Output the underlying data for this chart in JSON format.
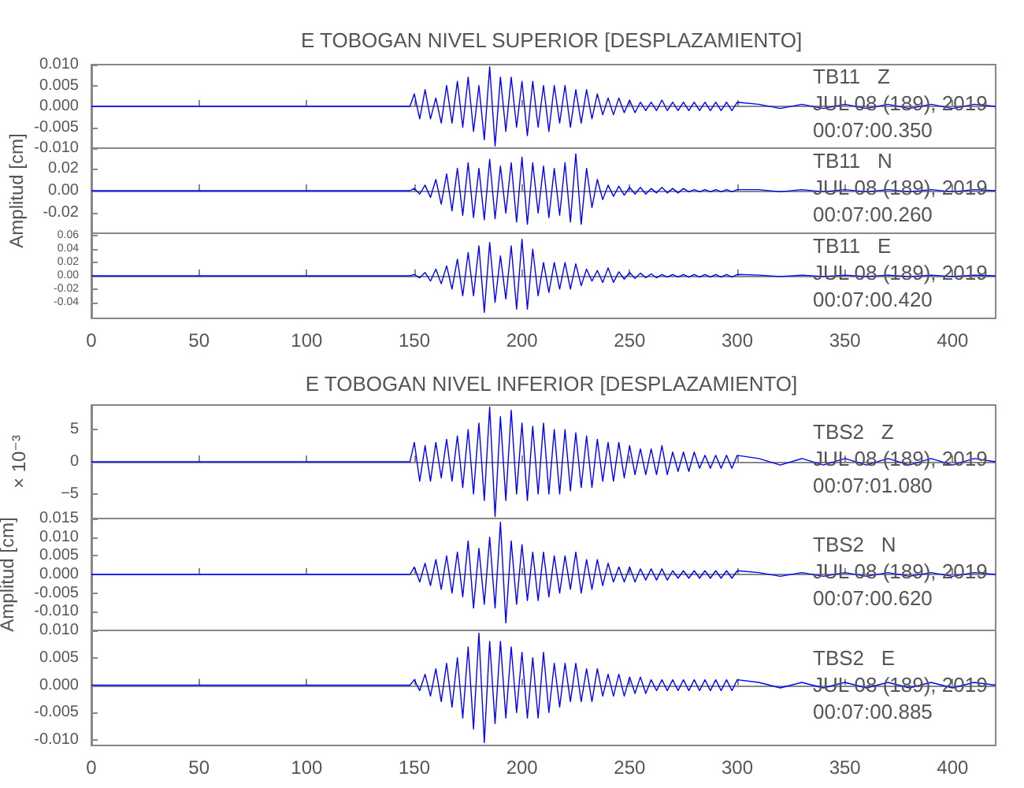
{
  "chart_data": [
    {
      "type": "line",
      "title": "E TOBOGAN NIVEL SUPERIOR [DESPLAZAMIENTO]",
      "marker": "none",
      "tick_labels": "y",
      "x": [
        0,
        50,
        100,
        148,
        150,
        152.5,
        155,
        157.5,
        160,
        162.5,
        165,
        167.5,
        170,
        172.5,
        175,
        177.5,
        180,
        182.5,
        185,
        187.5,
        190,
        192.5,
        195,
        197.5,
        200,
        202.5,
        205,
        207.5,
        210,
        212.5,
        215,
        217.5,
        220,
        222.5,
        225,
        227.5,
        230,
        232.5,
        235,
        237.5,
        240,
        242.5,
        245,
        247.5,
        250,
        252.5,
        255,
        257.5,
        260,
        262.5,
        265,
        267.5,
        270,
        272.5,
        275,
        277.5,
        280,
        282.5,
        285,
        287.5,
        290,
        292.5,
        295,
        297.5,
        300,
        310,
        320,
        330,
        340,
        350,
        360,
        370,
        380,
        390,
        400,
        410,
        420
      ],
      "series": [
        {
          "color": "#0000ff",
          "values": [
            0,
            0,
            0,
            0,
            0.003,
            -0.003,
            0.004,
            -0.003,
            0.002,
            -0.004,
            0.005,
            -0.004,
            0.006,
            -0.005,
            0.007,
            -0.006,
            0.005,
            -0.008,
            0.0095,
            -0.0095,
            0.007,
            -0.006,
            0.007,
            -0.005,
            0.006,
            -0.007,
            0.006,
            -0.005,
            0.005,
            -0.006,
            0.005,
            -0.004,
            0.005,
            -0.005,
            0.004,
            -0.004,
            0.004,
            -0.003,
            0.003,
            -0.002,
            0.002,
            -0.002,
            0.002,
            -0.0015,
            0.0015,
            -0.0015,
            0.001,
            -0.001,
            0.001,
            -0.001,
            0.0015,
            -0.001,
            0.001,
            -0.001,
            0.001,
            -0.001,
            0.001,
            -0.001,
            0.001,
            -0.001,
            0.001,
            -0.001,
            0.001,
            -0.001,
            0.001,
            0.0005,
            -0.0005,
            0.0005,
            -0.0005,
            0.0005,
            -0.0005,
            0.0005,
            -0.0005,
            0.0005,
            -0.0005,
            0.0005,
            0
          ]
        }
      ],
      "xlim": [
        0,
        420
      ],
      "xticks": [
        0,
        50,
        100,
        150,
        200,
        250,
        300,
        350,
        400
      ],
      "ylim": [
        -0.01,
        0.01
      ],
      "yticks": [
        {
          "value": -0.01,
          "label": "-0.010"
        },
        {
          "value": -0.005,
          "label": "-0.005"
        },
        {
          "value": 0,
          "label": "0.000"
        },
        {
          "value": 0.005,
          "label": "0.005"
        },
        {
          "value": 0.01,
          "label": "0.010"
        }
      ],
      "annotations": [
        "TB11   Z",
        "JUL 08 (189), 2019",
        "00:07:00.350"
      ]
    },
    {
      "type": "line",
      "ylabel": "Amplitud [cm]",
      "marker": "none",
      "tick_labels": "y",
      "x": [
        0,
        50,
        100,
        148,
        150,
        152.5,
        155,
        157.5,
        160,
        162.5,
        165,
        167.5,
        170,
        172.5,
        175,
        177.5,
        180,
        182.5,
        185,
        187.5,
        190,
        192.5,
        195,
        197.5,
        200,
        202.5,
        205,
        207.5,
        210,
        212.5,
        215,
        217.5,
        220,
        222.5,
        225,
        227.5,
        230,
        232.5,
        235,
        237.5,
        240,
        242.5,
        245,
        247.5,
        250,
        252.5,
        255,
        257.5,
        260,
        262.5,
        265,
        267.5,
        270,
        272.5,
        275,
        277.5,
        280,
        282.5,
        285,
        287.5,
        290,
        292.5,
        295,
        297.5,
        300,
        310,
        320,
        330,
        340,
        350,
        360,
        370,
        380,
        390,
        400,
        410,
        420
      ],
      "series": [
        {
          "color": "#0000ff",
          "values": [
            0,
            0,
            0,
            0,
            0.002,
            -0.003,
            0.005,
            -0.006,
            0.01,
            -0.012,
            0.015,
            -0.018,
            0.02,
            -0.022,
            0.025,
            -0.024,
            0.02,
            -0.026,
            0.028,
            -0.025,
            0.022,
            -0.02,
            0.025,
            -0.028,
            0.03,
            -0.03,
            0.025,
            -0.02,
            0.022,
            -0.024,
            0.02,
            -0.022,
            0.025,
            -0.028,
            0.033,
            -0.03,
            0.02,
            -0.015,
            0.01,
            -0.008,
            0.005,
            -0.005,
            0.004,
            -0.004,
            0.003,
            -0.003,
            0.003,
            -0.003,
            0.002,
            -0.002,
            0.003,
            -0.002,
            0.002,
            -0.002,
            0.002,
            -0.001,
            0.001,
            -0.001,
            0.001,
            -0.001,
            0.001,
            -0.001,
            0.001,
            -0.001,
            0.001,
            0.001,
            -0.001,
            0.001,
            -0.001,
            0.001,
            -0.001,
            0.001,
            -0.001,
            0.001,
            -0.001,
            0.001,
            0
          ]
        }
      ],
      "xlim": [
        0,
        420
      ],
      "xticks": [
        0,
        50,
        100,
        150,
        200,
        250,
        300,
        350,
        400
      ],
      "ylim": [
        -0.038,
        0.038
      ],
      "yticks": [
        {
          "value": -0.02,
          "label": "-0.02"
        },
        {
          "value": 0,
          "label": "0.00"
        },
        {
          "value": 0.02,
          "label": "0.02"
        }
      ],
      "annotations": [
        "TB11   N",
        "JUL 08 (189), 2019",
        "00:07:00.260"
      ]
    },
    {
      "type": "line",
      "marker": "none",
      "x": [
        0,
        50,
        100,
        148,
        150,
        152.5,
        155,
        157.5,
        160,
        162.5,
        165,
        167.5,
        170,
        172.5,
        175,
        177.5,
        180,
        182.5,
        185,
        187.5,
        190,
        192.5,
        195,
        197.5,
        200,
        202.5,
        205,
        207.5,
        210,
        212.5,
        215,
        217.5,
        220,
        222.5,
        225,
        227.5,
        230,
        232.5,
        235,
        237.5,
        240,
        242.5,
        245,
        247.5,
        250,
        252.5,
        255,
        257.5,
        260,
        262.5,
        265,
        267.5,
        270,
        272.5,
        275,
        277.5,
        280,
        282.5,
        285,
        287.5,
        290,
        292.5,
        295,
        297.5,
        300,
        310,
        320,
        330,
        340,
        350,
        360,
        370,
        380,
        390,
        400,
        410,
        420
      ],
      "series": [
        {
          "color": "#0000ff",
          "values": [
            0,
            0,
            0,
            0,
            0.002,
            -0.003,
            0.005,
            -0.008,
            0.01,
            -0.012,
            0.015,
            -0.02,
            0.025,
            -0.03,
            0.035,
            -0.03,
            0.045,
            -0.055,
            0.05,
            -0.04,
            0.03,
            -0.035,
            0.045,
            -0.05,
            0.055,
            -0.05,
            0.04,
            -0.03,
            0.02,
            -0.025,
            0.02,
            -0.02,
            0.02,
            -0.02,
            0.018,
            -0.015,
            0.01,
            -0.008,
            0.008,
            -0.01,
            0.012,
            -0.01,
            0.006,
            -0.005,
            0.005,
            -0.004,
            0.004,
            -0.003,
            0.003,
            -0.003,
            0.002,
            -0.002,
            0.002,
            -0.002,
            0.002,
            -0.002,
            0.002,
            -0.002,
            0.002,
            -0.002,
            0.002,
            -0.002,
            0.002,
            -0.002,
            0.002,
            0.001,
            -0.001,
            0.001,
            -0.001,
            0.001,
            -0.001,
            0.001,
            -0.001,
            0.001,
            -0.001,
            0.001,
            0
          ]
        }
      ],
      "xlim": [
        0,
        420
      ],
      "xticks": [
        0,
        50,
        100,
        150,
        200,
        250,
        300,
        350,
        400
      ],
      "ylim": [
        -0.064,
        0.064
      ],
      "yticks": [
        {
          "value": -0.04,
          "label": "-0.04"
        },
        {
          "value": -0.02,
          "label": "-0.02"
        },
        {
          "value": 0,
          "label": "0.00"
        },
        {
          "value": 0.02,
          "label": "0.02"
        },
        {
          "value": 0.04,
          "label": "0.04"
        },
        {
          "value": 0.06,
          "label": "0.06"
        }
      ],
      "annotations": [
        "TB11   E",
        "JUL 08 (189), 2019",
        "00:07:00.420"
      ]
    },
    {
      "type": "line",
      "title": "E TOBOGAN NIVEL INFERIOR [DESPLAZAMIENTO]",
      "ylabel": "× 10⁻³",
      "marker": "none",
      "tick_labels": "y",
      "x": [
        0,
        50,
        100,
        148,
        150,
        152.5,
        155,
        157.5,
        160,
        162.5,
        165,
        167.5,
        170,
        172.5,
        175,
        177.5,
        180,
        182.5,
        185,
        187.5,
        190,
        192.5,
        195,
        197.5,
        200,
        202.5,
        205,
        207.5,
        210,
        212.5,
        215,
        217.5,
        220,
        222.5,
        225,
        227.5,
        230,
        232.5,
        235,
        237.5,
        240,
        242.5,
        245,
        247.5,
        250,
        252.5,
        255,
        257.5,
        260,
        262.5,
        265,
        267.5,
        270,
        272.5,
        275,
        277.5,
        280,
        282.5,
        285,
        287.5,
        290,
        292.5,
        295,
        297.5,
        300,
        310,
        320,
        330,
        340,
        350,
        360,
        370,
        380,
        390,
        400,
        410,
        420
      ],
      "series": [
        {
          "color": "#0000ff",
          "values": [
            0,
            0,
            0,
            0,
            3,
            -3,
            2.5,
            -3,
            3,
            -2.5,
            3.5,
            -3,
            4,
            -4,
            5,
            -5,
            6,
            -6,
            8.5,
            -8.5,
            7,
            -6,
            8,
            -5,
            6,
            -6,
            5.5,
            -5,
            6,
            -5,
            5,
            -5,
            5,
            -4.5,
            4.5,
            -4,
            4,
            -4,
            3.5,
            -3,
            3,
            -3,
            3,
            -2.5,
            2.5,
            -2,
            2,
            -2,
            2,
            -2,
            2.5,
            -2,
            1.5,
            -1.5,
            1.5,
            -1.5,
            1.5,
            -1,
            1,
            -1,
            1,
            -1,
            1,
            -1,
            1,
            0.5,
            -0.5,
            0.5,
            -0.5,
            0.5,
            -0.5,
            0.5,
            -0.5,
            0.5,
            -0.5,
            0.5,
            0
          ]
        }
      ],
      "xlim": [
        0,
        420
      ],
      "xticks": [
        0,
        50,
        100,
        150,
        200,
        250,
        300,
        350,
        400
      ],
      "ylim": [
        -8.8,
        8.8
      ],
      "yticks": [
        {
          "value": -5,
          "label": "−5"
        },
        0,
        5
      ],
      "annotations": [
        "TBS2   Z",
        "JUL 08 (189), 2019",
        "00:07:01.080"
      ]
    },
    {
      "type": "line",
      "ylabel": "Amplitud [cm]",
      "marker": "none",
      "tick_labels": "y",
      "x": [
        0,
        50,
        100,
        148,
        150,
        152.5,
        155,
        157.5,
        160,
        162.5,
        165,
        167.5,
        170,
        172.5,
        175,
        177.5,
        180,
        182.5,
        185,
        187.5,
        190,
        192.5,
        195,
        197.5,
        200,
        202.5,
        205,
        207.5,
        210,
        212.5,
        215,
        217.5,
        220,
        222.5,
        225,
        227.5,
        230,
        232.5,
        235,
        237.5,
        240,
        242.5,
        245,
        247.5,
        250,
        252.5,
        255,
        257.5,
        260,
        262.5,
        265,
        267.5,
        270,
        272.5,
        275,
        277.5,
        280,
        282.5,
        285,
        287.5,
        290,
        292.5,
        295,
        297.5,
        300,
        310,
        320,
        330,
        340,
        350,
        360,
        370,
        380,
        390,
        400,
        410,
        420
      ],
      "series": [
        {
          "color": "#0000ff",
          "values": [
            0,
            0,
            0,
            0,
            0.002,
            -0.002,
            0.003,
            -0.003,
            0.004,
            -0.004,
            0.005,
            -0.005,
            0.006,
            -0.006,
            0.009,
            -0.009,
            0.007,
            -0.008,
            0.01,
            -0.009,
            0.014,
            -0.013,
            0.009,
            -0.008,
            0.008,
            -0.007,
            0.006,
            -0.007,
            0.006,
            -0.006,
            0.005,
            -0.005,
            0.005,
            -0.004,
            0.006,
            -0.005,
            0.004,
            -0.004,
            0.004,
            -0.003,
            0.003,
            -0.002,
            0.002,
            -0.002,
            0.002,
            -0.002,
            0.0015,
            -0.0015,
            0.0015,
            -0.0015,
            0.0015,
            -0.0015,
            0.001,
            -0.001,
            0.001,
            -0.001,
            0.001,
            -0.001,
            0.001,
            -0.001,
            0.001,
            -0.001,
            0.001,
            -0.001,
            0.001,
            0.0005,
            -0.0005,
            0.0005,
            -0.0005,
            0.0005,
            -0.0005,
            0.0005,
            -0.0005,
            0.0005,
            -0.0005,
            0.0005,
            0
          ]
        }
      ],
      "xlim": [
        0,
        420
      ],
      "xticks": [
        0,
        50,
        100,
        150,
        200,
        250,
        300,
        350,
        400
      ],
      "ylim": [
        -0.015,
        0.015
      ],
      "yticks": [
        {
          "value": -0.01,
          "label": "-0.010"
        },
        {
          "value": -0.005,
          "label": "-0.005"
        },
        {
          "value": 0,
          "label": "0.000"
        },
        {
          "value": 0.005,
          "label": "0.005"
        },
        {
          "value": 0.01,
          "label": "0.010"
        },
        {
          "value": 0.015,
          "label": "0.015"
        }
      ],
      "annotations": [
        "TBS2   N",
        "JUL 08 (189), 2019",
        "00:07:00.620"
      ]
    },
    {
      "type": "line",
      "marker": "none",
      "x": [
        0,
        50,
        100,
        148,
        150,
        152.5,
        155,
        157.5,
        160,
        162.5,
        165,
        167.5,
        170,
        172.5,
        175,
        177.5,
        180,
        182.5,
        185,
        187.5,
        190,
        192.5,
        195,
        197.5,
        200,
        202.5,
        205,
        207.5,
        210,
        212.5,
        215,
        217.5,
        220,
        222.5,
        225,
        227.5,
        230,
        232.5,
        235,
        237.5,
        240,
        242.5,
        245,
        247.5,
        250,
        252.5,
        255,
        257.5,
        260,
        262.5,
        265,
        267.5,
        270,
        272.5,
        275,
        277.5,
        280,
        282.5,
        285,
        287.5,
        290,
        292.5,
        295,
        297.5,
        300,
        310,
        320,
        330,
        340,
        350,
        360,
        370,
        380,
        390,
        400,
        410,
        420
      ],
      "series": [
        {
          "color": "#0000ff",
          "values": [
            0,
            0,
            0,
            0,
            0.001,
            -0.001,
            0.002,
            -0.002,
            0.003,
            -0.003,
            0.004,
            -0.004,
            0.005,
            -0.006,
            0.007,
            -0.008,
            0.0095,
            -0.0105,
            0.008,
            -0.007,
            0.008,
            -0.006,
            0.007,
            -0.005,
            0.006,
            -0.006,
            0.005,
            -0.006,
            0.006,
            -0.005,
            0.004,
            -0.004,
            0.004,
            -0.003,
            0.004,
            -0.003,
            0.003,
            -0.003,
            0.003,
            -0.002,
            0.002,
            -0.002,
            0.002,
            -0.002,
            0.0015,
            -0.0015,
            0.0015,
            -0.0015,
            0.001,
            -0.001,
            0.001,
            -0.001,
            0.001,
            -0.001,
            0.001,
            -0.001,
            0.001,
            -0.001,
            0.001,
            -0.001,
            0.001,
            -0.001,
            0.001,
            -0.001,
            0.001,
            0.0005,
            -0.0005,
            0.0005,
            -0.0005,
            0.0005,
            -0.0005,
            0.0005,
            -0.0005,
            0.0005,
            -0.0005,
            0.0005,
            0
          ]
        }
      ],
      "xlim": [
        0,
        420
      ],
      "xticks": [
        0,
        50,
        100,
        150,
        200,
        250,
        300,
        350,
        400
      ],
      "ylim": [
        -0.011,
        0.01
      ],
      "yticks": [
        {
          "value": -0.01,
          "label": "-0.010"
        },
        {
          "value": -0.005,
          "label": "-0.005"
        },
        {
          "value": 0,
          "label": "0.000"
        },
        {
          "value": 0.005,
          "label": "0.005"
        },
        {
          "value": 0.01,
          "label": "0.010"
        }
      ],
      "annotations": [
        "TBS2   E",
        "JUL 08 (189), 2019",
        "00:07:00.885"
      ]
    }
  ]
}
